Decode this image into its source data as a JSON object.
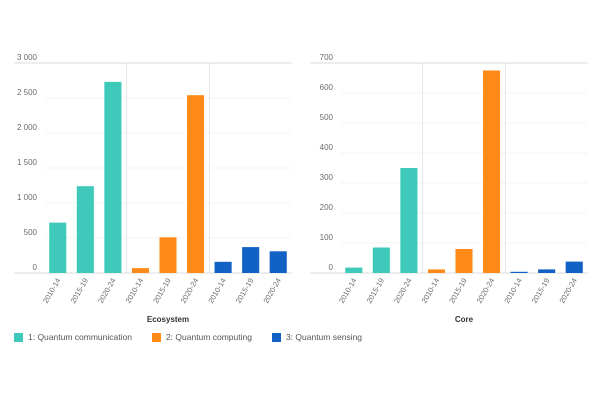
{
  "chart_data": [
    {
      "type": "bar",
      "title": "Ecosystem",
      "categories": [
        "2010-14",
        "2015-19",
        "2020-24",
        "2010-14",
        "2015-19",
        "2020-24",
        "2010-14",
        "2015-19",
        "2020-24"
      ],
      "groups": [
        "1: Quantum communication",
        "2: Quantum computing",
        "3: Quantum sensing"
      ],
      "values": [
        720,
        1240,
        2730,
        70,
        510,
        2540,
        160,
        370,
        310
      ],
      "group_index": [
        0,
        0,
        0,
        1,
        1,
        1,
        2,
        2,
        2
      ],
      "ylim": [
        0,
        3000
      ],
      "yticks": [
        0,
        500,
        1000,
        1500,
        2000,
        2500,
        3000
      ],
      "ytick_labels": [
        "0",
        "500",
        "1 000",
        "1 500",
        "2 000",
        "2 500",
        "3 000"
      ],
      "grid": true
    },
    {
      "type": "bar",
      "title": "Core",
      "categories": [
        "2010-14",
        "2015-19",
        "2020-24",
        "2010-14",
        "2015-19",
        "2020-24",
        "2010-14",
        "2015-19",
        "2020-24"
      ],
      "groups": [
        "1: Quantum communication",
        "2: Quantum computing",
        "3: Quantum sensing"
      ],
      "values": [
        18,
        85,
        350,
        12,
        80,
        675,
        4,
        12,
        38
      ],
      "group_index": [
        0,
        0,
        0,
        1,
        1,
        1,
        2,
        2,
        2
      ],
      "ylim": [
        0,
        700
      ],
      "yticks": [
        0,
        100,
        200,
        300,
        400,
        500,
        600,
        700
      ],
      "ytick_labels": [
        "0",
        "100",
        "200",
        "300",
        "400",
        "500",
        "600",
        "700"
      ],
      "grid": true
    }
  ],
  "colors": [
    "#3ec9bb",
    "#ff8a17",
    "#1261c4"
  ],
  "legend": {
    "items": [
      {
        "label": "1: Quantum communication"
      },
      {
        "label": "2: Quantum computing"
      },
      {
        "label": "3: Quantum sensing"
      }
    ]
  }
}
